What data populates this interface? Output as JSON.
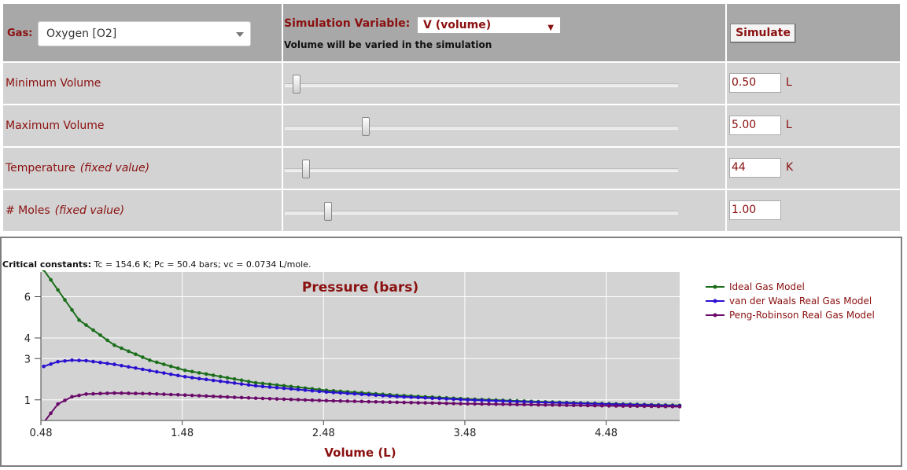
{
  "controls": {
    "gas_label": "Gas:",
    "gas_value": "Oxygen [O2]",
    "sim_var_label": "Simulation Variable:",
    "sim_var_value": "V (volume)",
    "sim_var_note": "Volume will be varied in the simulation",
    "simulate_label": "Simulate",
    "rows": [
      {
        "label": "Minimum Volume",
        "note": "",
        "value": "0.50",
        "unit": "L",
        "slider_fraction": 0.03
      },
      {
        "label": "Maximum Volume",
        "note": "",
        "value": "5.00",
        "unit": "L",
        "slider_fraction": 0.21
      },
      {
        "label": "Temperature",
        "note": "(fixed value)",
        "value": "44",
        "unit": "K",
        "slider_fraction": 0.05
      },
      {
        "label": "# Moles",
        "note": "(fixed value)",
        "value": "1.00",
        "unit": "",
        "slider_fraction": 0.11
      }
    ]
  },
  "critical": {
    "label": "Critical constants:",
    "text": "Tc = 154.6 K; Pc = 50.4 bars; vc = 0.0734 L/mole."
  },
  "colors": {
    "label_red": "#8b1010",
    "plot_bg": "#d3d3d3",
    "ideal": "#1a6e1a",
    "vdw": "#2a10d0",
    "pr": "#6a0a6a"
  },
  "chart_data": {
    "type": "line",
    "title": "Pressure (bars)",
    "xlabel": "Volume (L)",
    "ylabel": "",
    "xlim": [
      0.48,
      5.0
    ],
    "ylim": [
      0,
      7.2
    ],
    "x_ticks": [
      "0.48",
      "1.48",
      "2.48",
      "3.48",
      "4.48"
    ],
    "x_tick_values": [
      0.48,
      1.48,
      2.48,
      3.48,
      4.48
    ],
    "y_ticks": [
      "1",
      "3",
      "4",
      "6"
    ],
    "y_tick_values": [
      1,
      3,
      4,
      6
    ],
    "grid": true,
    "legend_position": "right",
    "series": [
      {
        "name": "Ideal Gas Model",
        "color": "#1a6e1a",
        "x": [
          0.5,
          0.75,
          1.0,
          1.25,
          1.5,
          2.0,
          2.5,
          3.0,
          3.5,
          4.0,
          4.5,
          5.0
        ],
        "y": [
          7.3,
          4.87,
          3.65,
          2.92,
          2.43,
          1.83,
          1.46,
          1.22,
          1.04,
          0.91,
          0.81,
          0.73
        ]
      },
      {
        "name": "van der Waals Real Gas Model",
        "color": "#2a10d0",
        "x": [
          0.5,
          0.6,
          0.7,
          0.8,
          1.0,
          1.25,
          1.5,
          2.0,
          2.5,
          3.0,
          3.5,
          4.0,
          4.5,
          5.0
        ],
        "y": [
          2.62,
          2.85,
          2.92,
          2.9,
          2.72,
          2.42,
          2.12,
          1.68,
          1.38,
          1.16,
          1.0,
          0.88,
          0.79,
          0.71
        ]
      },
      {
        "name": "Peng-Robinson Real Gas Model",
        "color": "#6a0a6a",
        "x": [
          0.5,
          0.6,
          0.7,
          0.8,
          1.0,
          1.25,
          1.5,
          2.0,
          2.5,
          3.0,
          3.5,
          4.0,
          4.5,
          5.0
        ],
        "y": [
          -0.1,
          0.8,
          1.15,
          1.28,
          1.33,
          1.3,
          1.23,
          1.08,
          0.96,
          0.88,
          0.81,
          0.76,
          0.71,
          0.67
        ]
      }
    ]
  }
}
